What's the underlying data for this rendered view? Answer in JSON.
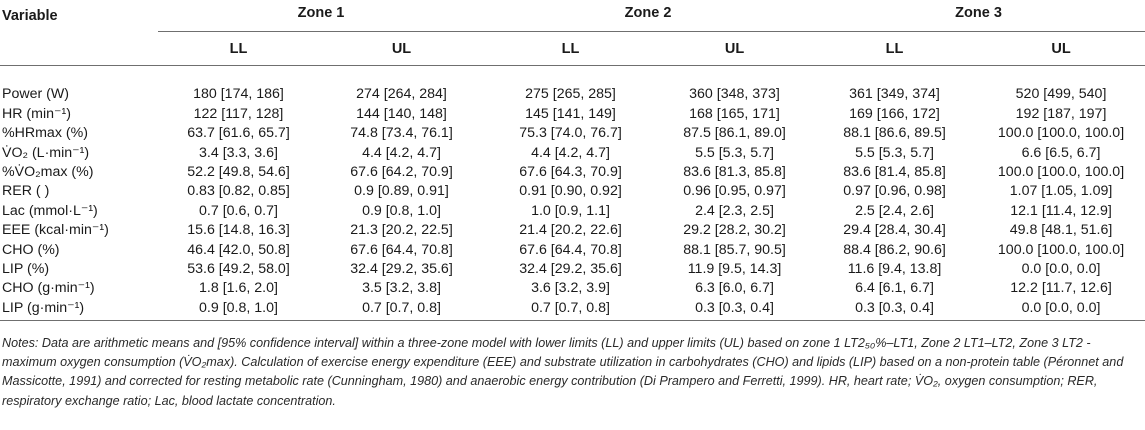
{
  "header": {
    "variable_label": "Variable",
    "zones": [
      "Zone 1",
      "Zone 2",
      "Zone 3"
    ],
    "sub_headers": [
      "LL",
      "UL",
      "LL",
      "UL",
      "LL",
      "UL"
    ]
  },
  "rows": [
    {
      "label": "Power (W)",
      "values": [
        "180 [174, 186]",
        "274 [264, 284]",
        "275 [265, 285]",
        "360 [348, 373]",
        "361 [349, 374]",
        "520 [499, 540]"
      ]
    },
    {
      "label": "HR (min⁻¹)",
      "values": [
        "122 [117, 128]",
        "144 [140, 148]",
        "145 [141, 149]",
        "168 [165, 171]",
        "169 [166, 172]",
        "192 [187, 197]"
      ]
    },
    {
      "label": "%HRmax (%)",
      "values": [
        "63.7 [61.6, 65.7]",
        "74.8 [73.4, 76.1]",
        "75.3 [74.0, 76.7]",
        "87.5 [86.1, 89.0]",
        "88.1 [86.6, 89.5]",
        "100.0 [100.0, 100.0]"
      ]
    },
    {
      "label": "V̇O₂ (L·min⁻¹)",
      "values": [
        "3.4 [3.3, 3.6]",
        "4.4 [4.2, 4.7]",
        "4.4 [4.2, 4.7]",
        "5.5 [5.3, 5.7]",
        "5.5 [5.3, 5.7]",
        "6.6 [6.5, 6.7]"
      ]
    },
    {
      "label": "%V̇O₂max (%)",
      "values": [
        "52.2 [49.8, 54.6]",
        "67.6 [64.2, 70.9]",
        "67.6 [64.3, 70.9]",
        "83.6 [81.3, 85.8]",
        "83.6 [81.4, 85.8]",
        "100.0 [100.0, 100.0]"
      ]
    },
    {
      "label": "RER ( )",
      "values": [
        "0.83 [0.82, 0.85]",
        "0.9 [0.89, 0.91]",
        "0.91 [0.90, 0.92]",
        "0.96 [0.95, 0.97]",
        "0.97 [0.96, 0.98]",
        "1.07 [1.05, 1.09]"
      ]
    },
    {
      "label": "Lac (mmol·L⁻¹)",
      "values": [
        "0.7 [0.6, 0.7]",
        "0.9 [0.8, 1.0]",
        "1.0 [0.9, 1.1]",
        "2.4 [2.3, 2.5]",
        "2.5 [2.4, 2.6]",
        "12.1 [11.4, 12.9]"
      ]
    },
    {
      "label": "EEE (kcal·min⁻¹)",
      "values": [
        "15.6 [14.8, 16.3]",
        "21.3 [20.2, 22.5]",
        "21.4 [20.2, 22.6]",
        "29.2 [28.2, 30.2]",
        "29.4 [28.4, 30.4]",
        "49.8 [48.1, 51.6]"
      ]
    },
    {
      "label": "CHO (%)",
      "values": [
        "46.4 [42.0, 50.8]",
        "67.6 [64.4, 70.8]",
        "67.6 [64.4, 70.8]",
        "88.1 [85.7, 90.5]",
        "88.4 [86.2, 90.6]",
        "100.0 [100.0, 100.0]"
      ]
    },
    {
      "label": "LIP (%)",
      "values": [
        "53.6 [49.2, 58.0]",
        "32.4 [29.2, 35.6]",
        "32.4 [29.2, 35.6]",
        "11.9 [9.5, 14.3]",
        "11.6 [9.4, 13.8]",
        "0.0 [0.0, 0.0]"
      ]
    },
    {
      "label": "CHO (g·min⁻¹)",
      "values": [
        "1.8 [1.6, 2.0]",
        "3.5 [3.2, 3.8]",
        "3.6 [3.2, 3.9]",
        "6.3 [6.0, 6.7]",
        "6.4 [6.1, 6.7]",
        "12.2 [11.7, 12.6]"
      ]
    },
    {
      "label": "LIP (g·min⁻¹)",
      "values": [
        "0.9 [0.8, 1.0]",
        "0.7 [0.7, 0.8]",
        "0.7 [0.7, 0.8]",
        "0.3 [0.3, 0.4]",
        "0.3 [0.3, 0.4]",
        "0.0 [0.0, 0.0]"
      ]
    }
  ],
  "notes": "Notes: Data are arithmetic means and [95% confidence interval] within a three-zone model with lower limits (LL) and upper limits (UL) based on zone 1 LT2₅₀%–LT1, Zone 2 LT1–LT2, Zone 3 LT2 - maximum oxygen consumption (V̇O₂max). Calculation of exercise energy expenditure (EEE) and substrate utilization in carbohydrates (CHO) and lipids (LIP) based on a non-protein table (Péronnet and Massicotte, 1991) and corrected for resting metabolic rate (Cunningham, 1980) and anaerobic energy contribution (Di Prampero and Ferretti, 1999). HR, heart rate; V̇O₂, oxygen consumption; RER, respiratory exchange ratio; Lac, blood lactate concentration."
}
